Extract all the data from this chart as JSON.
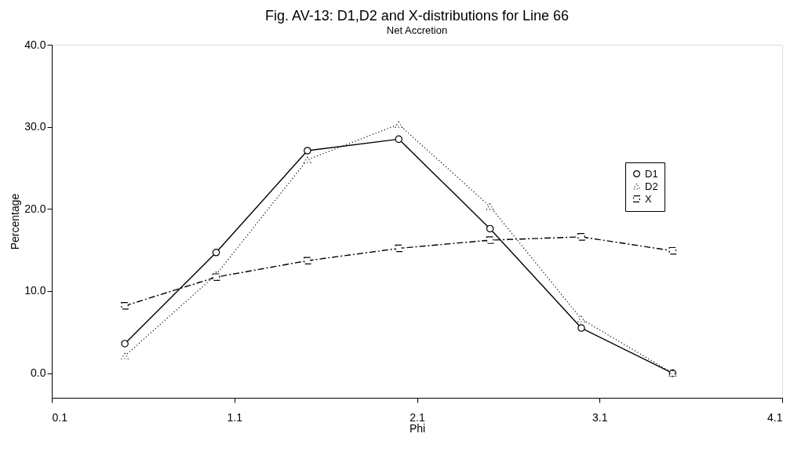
{
  "chart_data": {
    "type": "line",
    "title": "Fig. AV-13: D1,D2 and X-distributions for Line 66",
    "subtitle": "Net Accretion",
    "xlabel": "Phi",
    "ylabel": "Percentage",
    "x": [
      0.5,
      1.0,
      1.5,
      2.0,
      2.5,
      3.0,
      3.5
    ],
    "series": [
      {
        "name": "D1",
        "color": "#000000",
        "marker": "circle",
        "line_style": "solid",
        "values": [
          3.6,
          14.7,
          27.1,
          28.5,
          17.6,
          5.5,
          0.0
        ]
      },
      {
        "name": "D2",
        "color": "#000000",
        "marker": "triangle",
        "line_style": "dotted",
        "values": [
          2.1,
          12.0,
          26.0,
          30.3,
          20.3,
          6.6,
          0.0
        ]
      },
      {
        "name": "X",
        "color": "#000000",
        "marker": "square",
        "line_style": "dashed",
        "values": [
          8.2,
          11.7,
          13.7,
          15.2,
          16.2,
          16.6,
          14.9
        ]
      }
    ],
    "xlim": [
      0.1,
      4.1
    ],
    "xticks": [
      {
        "value": 0.1,
        "label": "0.1"
      },
      {
        "value": 1.1,
        "label": "1.1"
      },
      {
        "value": 2.1,
        "label": "2.1"
      },
      {
        "value": 3.1,
        "label": "3.1"
      },
      {
        "value": 4.1,
        "label": "4.1"
      }
    ],
    "ylim": [
      -3,
      40
    ],
    "yticks": [
      {
        "value": 0,
        "label": "0.0"
      },
      {
        "value": 10,
        "label": "10.0"
      },
      {
        "value": 20,
        "label": "20.0"
      },
      {
        "value": 30,
        "label": "30.0"
      },
      {
        "value": 40,
        "label": "40.0"
      }
    ],
    "grid": false,
    "legend": "top right"
  }
}
